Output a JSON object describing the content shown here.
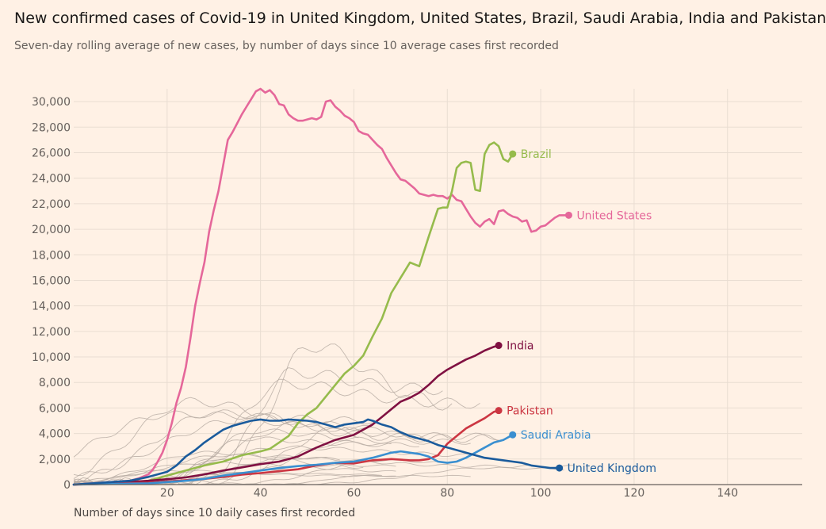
{
  "title": "New confirmed cases of Covid-19 in United Kingdom, United States, Brazil, Saudi Arabia, India and Pakistan",
  "subtitle": "Seven-day rolling average of new cases, by number of days since 10 average cases first recorded",
  "chart_data": {
    "type": "line",
    "xlabel": "Number of days since 10 daily cases first recorded",
    "ylabel": "",
    "xlim": [
      0,
      156
    ],
    "ylim": [
      0,
      31000
    ],
    "xticks": [
      20,
      40,
      60,
      80,
      100,
      120,
      140
    ],
    "yticks": [
      0,
      2000,
      4000,
      6000,
      8000,
      10000,
      12000,
      14000,
      16000,
      18000,
      20000,
      22000,
      24000,
      26000,
      28000,
      30000
    ],
    "ytick_labels": [
      "0",
      "2,000",
      "4,000",
      "6,000",
      "8,000",
      "10,000",
      "12,000",
      "14,000",
      "16,000",
      "18,000",
      "20,000",
      "22,000",
      "24,000",
      "26,000",
      "28,000",
      "30,000"
    ],
    "xtick_labels": [
      "20",
      "40",
      "60",
      "80",
      "100",
      "120",
      "140"
    ],
    "grid": true,
    "background_color": "#fff1e5",
    "background_series_color": "#b5aaa1",
    "series": [
      {
        "name": "United States",
        "color": "#e5679a",
        "x": [
          0,
          4,
          8,
          12,
          14,
          16,
          17,
          18,
          19,
          20,
          21,
          22,
          23,
          24,
          25,
          26,
          27,
          28,
          29,
          30,
          31,
          32,
          33,
          34,
          35,
          36,
          37,
          38,
          39,
          40,
          41,
          42,
          43,
          44,
          45,
          46,
          47,
          48,
          49,
          50,
          51,
          52,
          53,
          54,
          55,
          56,
          57,
          58,
          59,
          60,
          61,
          62,
          63,
          64,
          65,
          66,
          67,
          68,
          69,
          70,
          71,
          72,
          73,
          74,
          75,
          76,
          77,
          78,
          79,
          80,
          81,
          82,
          83,
          84,
          85,
          86,
          87,
          88,
          89,
          90,
          91,
          92,
          93,
          94,
          95,
          96,
          97,
          98,
          99,
          100,
          101,
          102,
          103,
          104,
          105,
          106
        ],
        "values": [
          0,
          100,
          200,
          300,
          500,
          800,
          1200,
          1800,
          2500,
          3500,
          4800,
          6400,
          7600,
          9200,
          11500,
          14000,
          15800,
          17400,
          19800,
          21500,
          23000,
          25000,
          27000,
          27600,
          28300,
          29000,
          29600,
          30200,
          30800,
          31000,
          30700,
          30900,
          30500,
          29800,
          29700,
          29000,
          28700,
          28500,
          28500,
          28600,
          28700,
          28600,
          28800,
          30000,
          30100,
          29600,
          29300,
          28900,
          28700,
          28400,
          27700,
          27500,
          27400,
          27000,
          26600,
          26300,
          25600,
          25000,
          24400,
          23900,
          23800,
          23500,
          23200,
          22800,
          22700,
          22600,
          22700,
          22600,
          22600,
          22400,
          22700,
          22300,
          22200,
          21600,
          21000,
          20500,
          20200,
          20600,
          20800,
          20400,
          21400,
          21500,
          21200,
          21000,
          20900,
          20600,
          20700,
          19800,
          19900,
          20200,
          20300,
          20600,
          20900,
          21100,
          21100,
          21100
        ]
      },
      {
        "name": "Brazil",
        "color": "#96bb4c",
        "x": [
          0,
          6,
          12,
          16,
          20,
          24,
          28,
          32,
          36,
          40,
          42,
          44,
          46,
          48,
          50,
          52,
          54,
          56,
          58,
          60,
          62,
          64,
          66,
          68,
          70,
          72,
          74,
          76,
          78,
          79,
          80,
          81,
          82,
          83,
          84,
          85,
          86,
          87,
          88,
          89,
          90,
          91,
          92,
          93,
          94
        ],
        "values": [
          0,
          100,
          150,
          300,
          700,
          1100,
          1500,
          1800,
          2300,
          2600,
          2800,
          3300,
          3800,
          4800,
          5500,
          6000,
          6900,
          7800,
          8700,
          9300,
          10100,
          11600,
          13000,
          15000,
          16200,
          17400,
          17100,
          19400,
          21600,
          21700,
          21700,
          23000,
          24800,
          25200,
          25300,
          25200,
          23100,
          23000,
          25900,
          26600,
          26800,
          26500,
          25500,
          25300,
          25900
        ]
      },
      {
        "name": "India",
        "color": "#801142",
        "x": [
          0,
          8,
          16,
          20,
          24,
          28,
          32,
          36,
          40,
          44,
          48,
          52,
          56,
          60,
          64,
          66,
          68,
          70,
          72,
          74,
          76,
          78,
          80,
          82,
          84,
          86,
          88,
          90,
          91
        ],
        "values": [
          0,
          120,
          300,
          420,
          560,
          800,
          1100,
          1350,
          1600,
          1800,
          2200,
          2900,
          3500,
          3900,
          4700,
          5300,
          5900,
          6500,
          6800,
          7200,
          7800,
          8500,
          9000,
          9400,
          9800,
          10100,
          10500,
          10800,
          10900
        ]
      },
      {
        "name": "Pakistan",
        "color": "#cc3642",
        "x": [
          0,
          10,
          16,
          20,
          24,
          28,
          32,
          36,
          40,
          44,
          48,
          52,
          56,
          60,
          64,
          68,
          72,
          74,
          76,
          78,
          80,
          82,
          84,
          86,
          88,
          90,
          91
        ],
        "values": [
          0,
          80,
          150,
          250,
          350,
          450,
          600,
          780,
          900,
          1050,
          1200,
          1500,
          1700,
          1650,
          1900,
          2000,
          1900,
          1900,
          2000,
          2300,
          3200,
          3800,
          4400,
          4800,
          5200,
          5700,
          5800
        ]
      },
      {
        "name": "Saudi Arabia",
        "color": "#3a8fd0",
        "x": [
          0,
          16,
          20,
          24,
          28,
          32,
          36,
          40,
          44,
          48,
          52,
          56,
          60,
          64,
          68,
          70,
          72,
          74,
          76,
          78,
          80,
          82,
          84,
          86,
          88,
          90,
          92,
          94
        ],
        "values": [
          0,
          100,
          200,
          300,
          450,
          700,
          900,
          1100,
          1300,
          1450,
          1550,
          1700,
          1800,
          2100,
          2500,
          2600,
          2500,
          2400,
          2200,
          1800,
          1700,
          1800,
          2100,
          2500,
          2900,
          3300,
          3500,
          3900
        ]
      },
      {
        "name": "United Kingdom",
        "color": "#1a5b9c",
        "x": [
          0,
          12,
          16,
          20,
          22,
          24,
          26,
          28,
          30,
          32,
          34,
          36,
          38,
          40,
          42,
          44,
          46,
          48,
          50,
          52,
          54,
          56,
          58,
          60,
          62,
          63,
          64,
          66,
          68,
          70,
          72,
          74,
          76,
          78,
          80,
          82,
          84,
          86,
          88,
          90,
          92,
          94,
          96,
          98,
          100,
          102,
          104
        ],
        "values": [
          0,
          300,
          600,
          1000,
          1500,
          2200,
          2700,
          3300,
          3800,
          4300,
          4600,
          4800,
          5000,
          5100,
          5000,
          5000,
          5100,
          5050,
          5000,
          4900,
          4700,
          4500,
          4700,
          4800,
          4900,
          5100,
          5000,
          4700,
          4500,
          4100,
          3800,
          3600,
          3400,
          3100,
          2900,
          2700,
          2500,
          2300,
          2100,
          2000,
          1900,
          1800,
          1700,
          1500,
          1400,
          1300,
          1300
        ]
      }
    ],
    "background_series_peaks": [
      10900,
      8800,
      7900,
      6500,
      5600,
      5500,
      5000,
      4800,
      4500,
      4200,
      3600,
      3300,
      2900,
      2500,
      2300,
      2100,
      1900,
      1700,
      1500,
      1300,
      1100,
      900,
      700
    ]
  }
}
